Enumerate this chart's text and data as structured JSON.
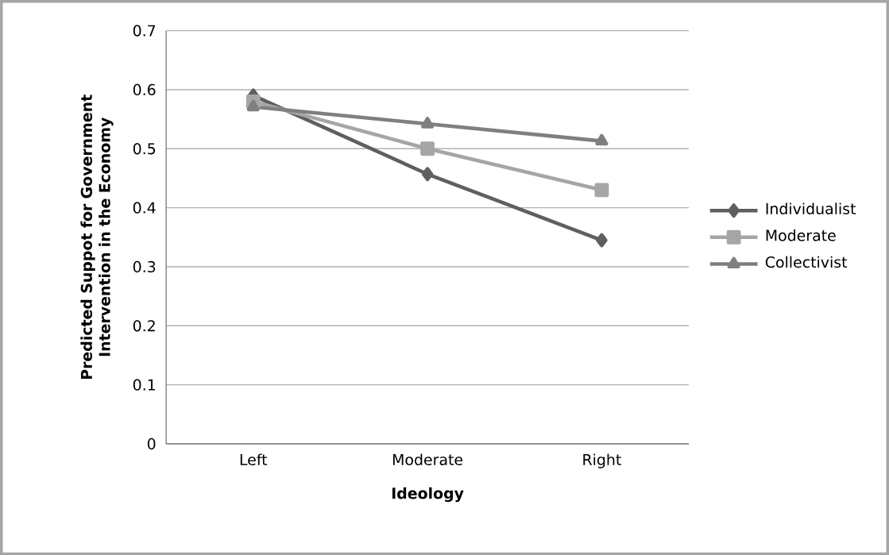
{
  "chart_data": {
    "type": "line",
    "xlabel": "Ideology",
    "ylabel": "Predicted Suppot for Government Intervention in the Economy",
    "categories": [
      "Left",
      "Moderate",
      "Right"
    ],
    "series": [
      {
        "name": "Individualist",
        "color": "#5f5f5f",
        "values": [
          0.59,
          0.457,
          0.345
        ],
        "marker": "diamond"
      },
      {
        "name": "Moderate",
        "color": "#a6a6a6",
        "values": [
          0.58,
          0.5,
          0.43
        ],
        "marker": "square"
      },
      {
        "name": "Collectivist",
        "color": "#7f7f7f",
        "values": [
          0.571,
          0.542,
          0.513
        ],
        "marker": "triangle"
      }
    ],
    "ylim": [
      0,
      0.7
    ],
    "yticks": [
      0,
      0.1,
      0.2,
      0.3,
      0.4,
      0.5,
      0.6,
      0.7
    ],
    "grid": "y",
    "legend": "right"
  }
}
